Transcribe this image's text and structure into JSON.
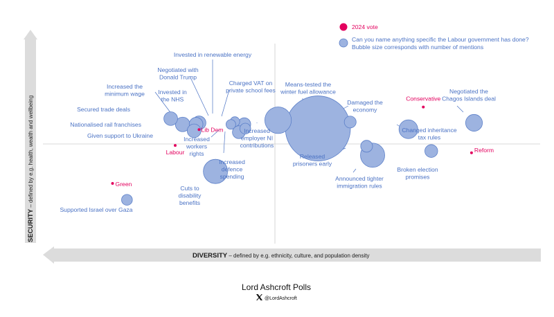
{
  "chart_data": {
    "type": "scatter",
    "x_axis": {
      "title": "DIVERSITY",
      "subtitle": " – defined by e.g. ethnicity, culture, and population density",
      "range": [
        0,
        100
      ]
    },
    "y_axis": {
      "title": "SECURITY",
      "subtitle": " – defined by e.g. health, wealth and wellbeing",
      "range": [
        0,
        100
      ]
    },
    "legend": {
      "vote_label": "2024 vote",
      "bubble_label_line1": "Can you name anything specific the Labour government has done?",
      "bubble_label_line2": "Bubble size corresponds with number of mentions"
    },
    "party_points": [
      {
        "name": "Conservative",
        "x": 76.5,
        "y": 68.3
      },
      {
        "name": "Lib Dem",
        "x": 31.4,
        "y": 57.0
      },
      {
        "name": "Labour",
        "x": 26.6,
        "y": 49.1
      },
      {
        "name": "Reform",
        "x": 86.2,
        "y": 45.4
      },
      {
        "name": "Green",
        "x": 14.0,
        "y": 30.1
      }
    ],
    "bubbles": [
      {
        "label": [
          "Invested in renewable energy"
        ],
        "x": 38.6,
        "y": 61.0,
        "size": 4
      },
      {
        "label": [
          "Negotiated with",
          "Donald Trump"
        ],
        "x": 37.8,
        "y": 59.6,
        "size": 4
      },
      {
        "label": [
          "Increased the",
          "minimum wage"
        ],
        "x": 31.4,
        "y": 60.4,
        "size": 8
      },
      {
        "label": [
          "Invested in",
          "the NHS"
        ],
        "x": 30.8,
        "y": 59.7,
        "size": 8
      },
      {
        "label": [
          "Charged VAT on",
          "private school fees"
        ],
        "x": 40.5,
        "y": 59.7,
        "size": 7
      },
      {
        "label": [
          "Secured trade deals"
        ],
        "x": 25.7,
        "y": 62.5,
        "size": 8
      },
      {
        "label": [
          "Nationalised rail franchises"
        ],
        "x": 28.1,
        "y": 59.6,
        "size": 9
      },
      {
        "label": [
          "Given support to Ukraine"
        ],
        "x": 30.4,
        "y": 56.4,
        "size": 8
      },
      {
        "label": [
          "Increased",
          "workers",
          "rights"
        ],
        "x": 39.4,
        "y": 55.7,
        "size": 7
      },
      {
        "label": [
          "Increased",
          "defence",
          "spending"
        ],
        "x": 40.7,
        "y": 57.5,
        "size": 5
      },
      {
        "label": [
          "Increased",
          "employer NI",
          "contributions"
        ],
        "x": 47.3,
        "y": 61.7,
        "size": 30
      },
      {
        "label": [
          "Means-tested the",
          "winter fuel allowance"
        ],
        "x": 55.3,
        "y": 57.6,
        "size": 180
      },
      {
        "label": [
          "Damaged the",
          "economy"
        ],
        "x": 61.8,
        "y": 60.8,
        "size": 6
      },
      {
        "label": [
          "Negotiated the",
          "Chagos Islands deal"
        ],
        "x": 86.7,
        "y": 60.4,
        "size": 12
      },
      {
        "label": [
          "Changed inheritance",
          "tax rules"
        ],
        "x": 73.5,
        "y": 57.2,
        "size": 15
      },
      {
        "label": [
          "Released",
          "prisoners early"
        ],
        "x": 65.1,
        "y": 48.7,
        "size": 6
      },
      {
        "label": [
          "Announced tighter",
          "immigration rules"
        ],
        "x": 66.3,
        "y": 44.2,
        "size": 25
      },
      {
        "label": [
          "Broken election",
          "promises"
        ],
        "x": 78.1,
        "y": 46.3,
        "size": 7
      },
      {
        "label": [
          "Cuts to",
          "disability",
          "benefits"
        ],
        "x": 34.7,
        "y": 36.1,
        "size": 25
      },
      {
        "label": [
          "Supported Israel over Gaza"
        ],
        "x": 16.9,
        "y": 21.9,
        "size": 5
      }
    ]
  },
  "footer": {
    "source": "Lord Ashcroft Polls",
    "social_icon": "x-logo-icon",
    "handle": "@LordAshcroft"
  },
  "colors": {
    "bubble_fill": "#9db3e0",
    "bubble_stroke": "#5b7fc8",
    "label_blue": "#4a72c4",
    "party_red": "#e3005e",
    "arrow_grey": "#dcdcdc"
  }
}
